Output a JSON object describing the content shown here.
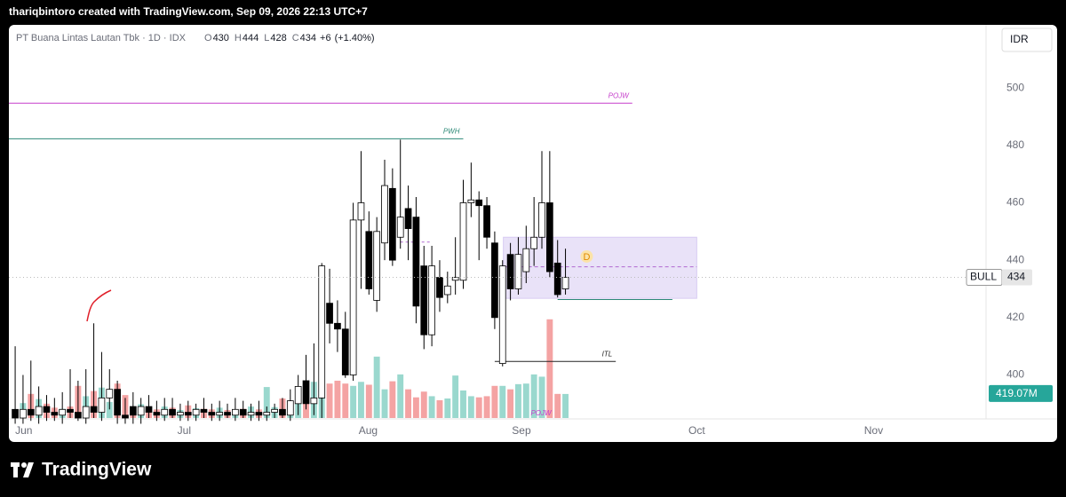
{
  "header": "thariqbintoro created with TradingView.com, Sep 09, 2026 22:13 UTC+7",
  "brand": "TradingView",
  "chart_data": {
    "type": "candlestick",
    "symbol": "PT Buana Lintas Lautan Tbk · 1D · IDX",
    "legend": [
      {
        "key": "O",
        "value": 430
      },
      {
        "key": "H",
        "value": 444
      },
      {
        "key": "L",
        "value": 428
      },
      {
        "key": "C",
        "value": 434
      }
    ],
    "change": "+6",
    "change_pct": "(+1.40%)",
    "currency": "IDR",
    "up_color": "#ffffff",
    "down_color": "#000000",
    "volume_up_color": "#9ad8ce",
    "volume_down_color": "#f4a3a3",
    "open": [
      388,
      385,
      388,
      386,
      389,
      387,
      386,
      388,
      387,
      385,
      389,
      387,
      392,
      395,
      386,
      389,
      386,
      389,
      387,
      386,
      388,
      386,
      387,
      386,
      388,
      387,
      386,
      387,
      386,
      388,
      386,
      387,
      386,
      387,
      388,
      386,
      390,
      398,
      390,
      392,
      425,
      418,
      416,
      400,
      454,
      450,
      426,
      446,
      465,
      448,
      458,
      455,
      438,
      414,
      434,
      428,
      433,
      433,
      460,
      461,
      459,
      446,
      404,
      442,
      430,
      436,
      444,
      448,
      460,
      439,
      430
    ],
    "high": [
      410,
      400,
      405,
      396,
      393,
      392,
      394,
      402,
      398,
      402,
      418,
      408,
      402,
      398,
      392,
      394,
      392,
      393,
      391,
      392,
      392,
      390,
      391,
      390,
      392,
      390,
      391,
      390,
      392,
      391,
      390,
      391,
      389,
      390,
      392,
      395,
      400,
      407,
      411,
      439,
      437,
      426,
      422,
      460,
      478,
      457,
      455,
      475,
      472,
      482,
      466,
      462,
      445,
      445,
      440,
      436,
      448,
      468,
      474,
      464,
      462,
      450,
      440,
      446,
      448,
      452,
      462,
      478,
      478,
      447,
      444
    ],
    "low": [
      383,
      383,
      384,
      383,
      384,
      384,
      383,
      385,
      384,
      383,
      385,
      384,
      388,
      383,
      383,
      383,
      383,
      385,
      384,
      384,
      385,
      384,
      384,
      384,
      385,
      384,
      384,
      385,
      384,
      385,
      384,
      384,
      384,
      385,
      385,
      384,
      386,
      388,
      386,
      385,
      411,
      408,
      399,
      398,
      430,
      428,
      422,
      440,
      438,
      444,
      440,
      418,
      409,
      410,
      422,
      425,
      428,
      430,
      455,
      440,
      444,
      416,
      403,
      426,
      428,
      432,
      438,
      444,
      434,
      427,
      428
    ],
    "close": [
      385,
      388,
      386,
      389,
      387,
      386,
      388,
      387,
      385,
      389,
      387,
      392,
      395,
      386,
      385,
      386,
      389,
      387,
      386,
      388,
      386,
      387,
      386,
      388,
      387,
      386,
      387,
      386,
      388,
      386,
      387,
      386,
      387,
      388,
      386,
      391,
      396,
      390,
      392,
      438,
      418,
      416,
      400,
      454,
      460,
      430,
      450,
      466,
      440,
      455,
      451,
      424,
      414,
      438,
      427,
      431,
      434,
      460,
      461,
      459,
      448,
      420,
      438,
      430,
      442,
      444,
      448,
      460,
      436,
      428,
      434
    ],
    "volume": [
      90,
      260,
      420,
      330,
      250,
      180,
      160,
      200,
      560,
      380,
      470,
      530,
      280,
      600,
      400,
      120,
      240,
      180,
      150,
      200,
      180,
      140,
      220,
      170,
      160,
      150,
      180,
      140,
      130,
      160,
      200,
      150,
      540,
      190,
      340,
      300,
      280,
      510,
      630,
      540,
      600,
      650,
      600,
      560,
      630,
      580,
      1070,
      500,
      640,
      760,
      500,
      360,
      460,
      380,
      310,
      340,
      740,
      480,
      380,
      360,
      380,
      560,
      560,
      500,
      590,
      600,
      760,
      720,
      1720,
      420,
      419.07
    ],
    "volume_last_label": "419.07M",
    "volume_ylim": [
      0,
      3000
    ],
    "xlim": [
      -0.8,
      123.5
    ],
    "xticks": [
      {
        "value": 1.1,
        "label": "Jun"
      },
      {
        "value": 21.5,
        "label": "Jul"
      },
      {
        "value": 44.9,
        "label": "Aug"
      },
      {
        "value": 64.4,
        "label": "Sep"
      },
      {
        "value": 86.7,
        "label": "Oct"
      },
      {
        "value": 109.2,
        "label": "Nov"
      }
    ],
    "ylim": [
      385,
      522
    ],
    "yticks": [
      400,
      420,
      440,
      460,
      480,
      500
    ],
    "last_label": {
      "name": "BULL",
      "value": 434
    },
    "levels": [
      {
        "label": "POJW",
        "value": 494.7,
        "x_from": -0.8,
        "x_to": 78.5,
        "color": "#c53ecb"
      },
      {
        "label": "PWH",
        "value": 482.3,
        "x_from": -0.8,
        "x_to": 57,
        "color": "#2e8a78"
      },
      {
        "label": "ITL",
        "value": 404.7,
        "x_from": 61,
        "x_to": 76.4,
        "color": "#222222"
      }
    ],
    "zone": {
      "low": 426.7,
      "high": 448,
      "mid": 437.7,
      "x_from": 62.1,
      "x_to": 86.7,
      "color": "#e9e2f8"
    },
    "zone_line": {
      "value": 426.3,
      "x_from": 69,
      "x_to": 83.6,
      "color": "#2e8a78"
    },
    "dashed_level": {
      "value": 446.3,
      "x_from": 49,
      "x_to": 53,
      "color": "#b06ad0"
    },
    "marker": {
      "label": "D",
      "value": 441.3,
      "x": 72.7
    },
    "volume_annotation": "POJW"
  }
}
